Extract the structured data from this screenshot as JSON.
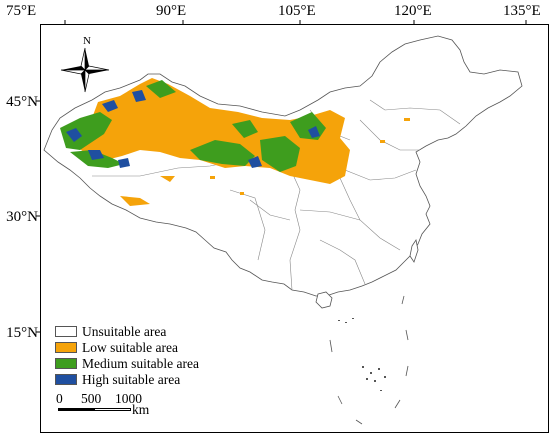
{
  "axes": {
    "lon_labels": [
      "75°E",
      "90°E",
      "105°E",
      "120°E",
      "135°E"
    ],
    "lat_labels": [
      "45°N",
      "30°N",
      "15°N"
    ]
  },
  "north_arrow": {
    "label": "N"
  },
  "legend": {
    "items": [
      {
        "label": "Unsuitable area",
        "color": "#ffffff"
      },
      {
        "label": "Low suitable area",
        "color": "#f5a30a"
      },
      {
        "label": "Medium suitable area",
        "color": "#3e9d1e"
      },
      {
        "label": "High suitable area",
        "color": "#1f4fa0"
      }
    ]
  },
  "scale_bar": {
    "ticks": [
      "0",
      "500",
      "1000"
    ],
    "unit": "km"
  }
}
